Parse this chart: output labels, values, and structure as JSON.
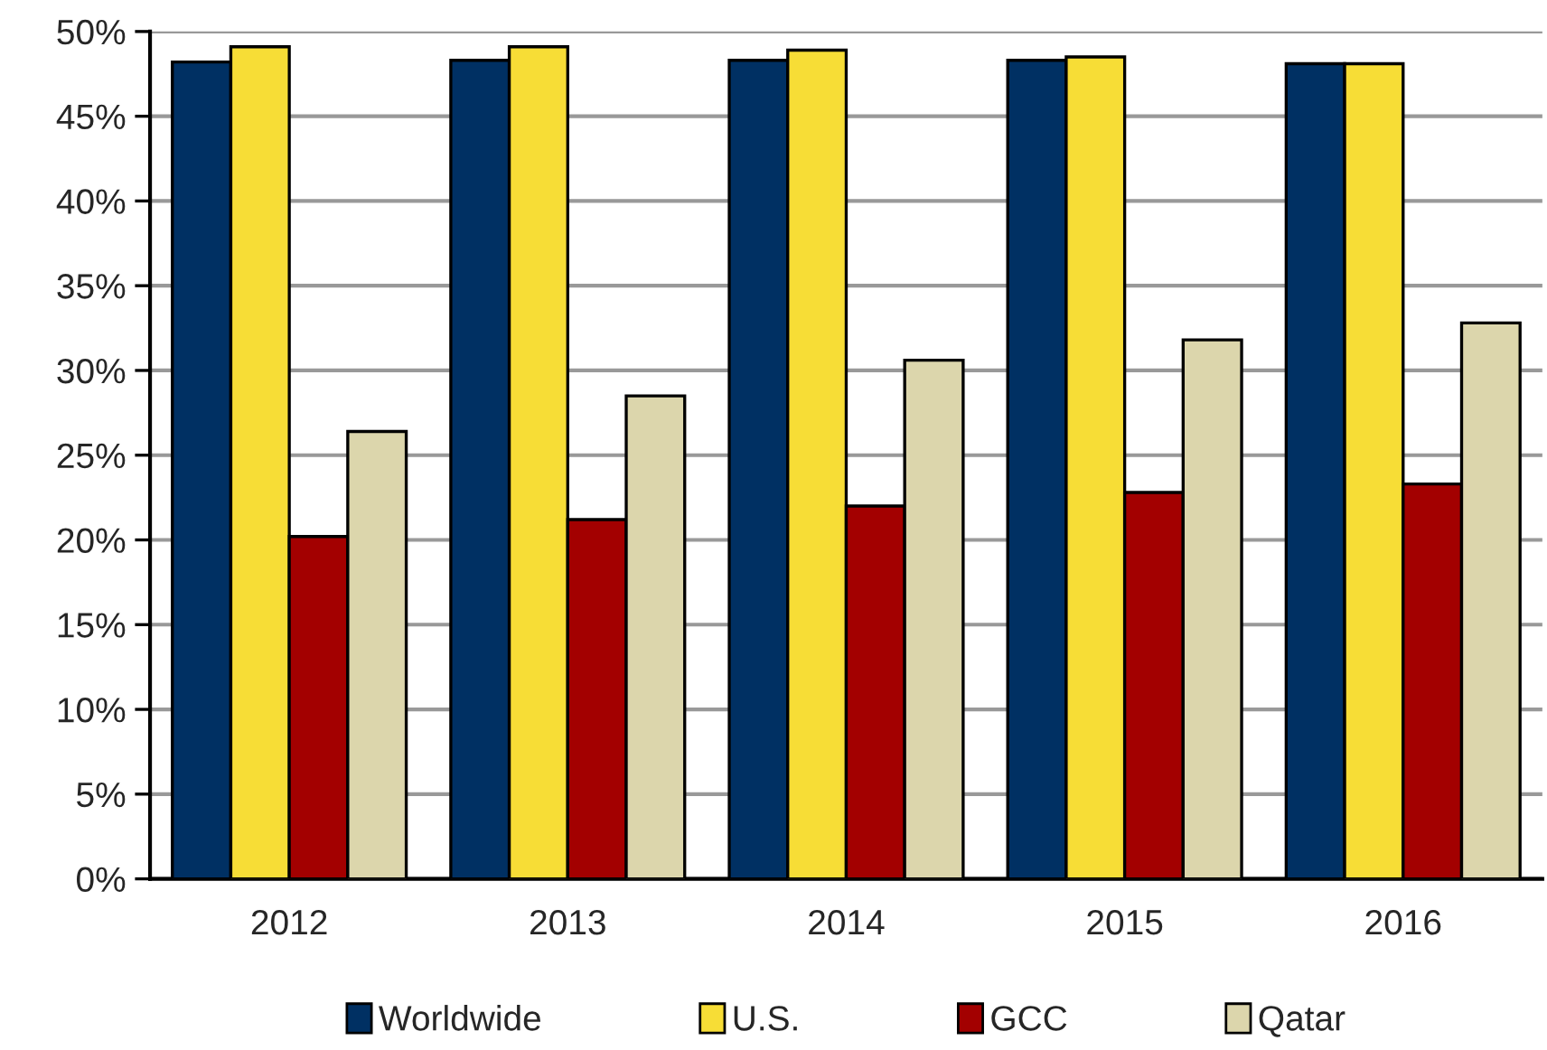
{
  "chart_data": {
    "type": "bar",
    "categories": [
      "2012",
      "2013",
      "2014",
      "2015",
      "2016"
    ],
    "series": [
      {
        "name": "Worldwide",
        "color": "#003063",
        "values": [
          48.2,
          48.3,
          48.3,
          48.3,
          48.1
        ]
      },
      {
        "name": "U.S.",
        "color": "#f7dd36",
        "values": [
          49.1,
          49.1,
          48.9,
          48.5,
          48.1
        ]
      },
      {
        "name": "GCC",
        "color": "#a30000",
        "values": [
          20.2,
          21.2,
          22.0,
          22.8,
          23.3
        ]
      },
      {
        "name": "Qatar",
        "color": "#dcd6ac",
        "values": [
          26.4,
          28.5,
          30.6,
          31.8,
          32.8
        ]
      }
    ],
    "ylim": [
      0,
      50
    ],
    "yticks": [
      {
        "value": 0,
        "label": "0%"
      },
      {
        "value": 5,
        "label": "5%"
      },
      {
        "value": 10,
        "label": "10%"
      },
      {
        "value": 15,
        "label": "15%"
      },
      {
        "value": 20,
        "label": "20%"
      },
      {
        "value": 25,
        "label": "25%"
      },
      {
        "value": 30,
        "label": "30%"
      },
      {
        "value": 35,
        "label": "35%"
      },
      {
        "value": 40,
        "label": "40%"
      },
      {
        "value": 45,
        "label": "45%"
      },
      {
        "value": 50,
        "label": "50%"
      }
    ],
    "grid": "y",
    "legend": "bottom"
  }
}
